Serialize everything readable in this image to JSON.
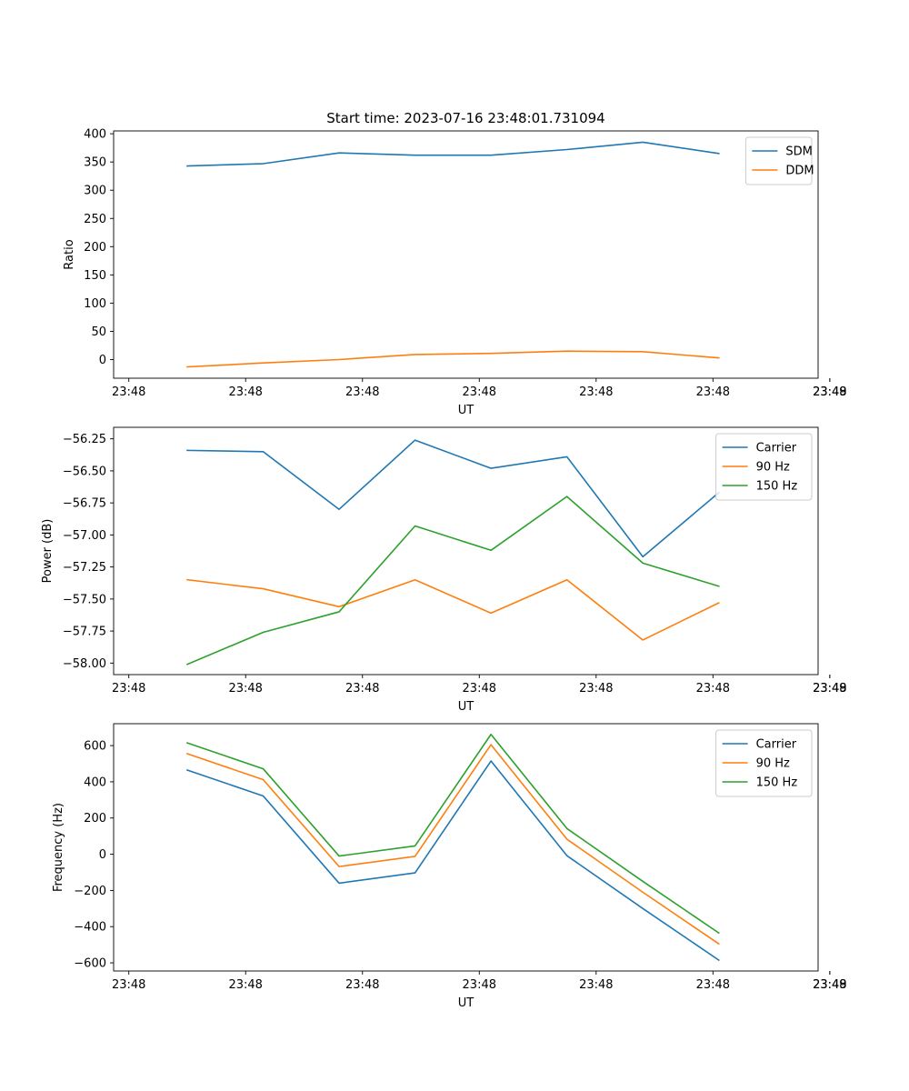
{
  "chart_data": [
    {
      "type": "line",
      "title": "Start time: 2023-07-16 23:48:01.731094",
      "xlabel": "UT",
      "ylabel": "Ratio",
      "xlim": [
        -0.13,
        5.9
      ],
      "ylim": [
        -33,
        405
      ],
      "x": [
        0.5,
        1.15,
        1.8,
        2.45,
        3.1,
        3.75,
        4.4,
        5.05
      ],
      "xticks": [
        0,
        1,
        2,
        3,
        4,
        5,
        6
      ],
      "xtick_labels": [
        "23:48",
        "23:48",
        "23:48",
        "23:48",
        "23:48",
        "23:48",
        "23:48"
      ],
      "xtick_end_label": "23:49",
      "yticks": [
        0,
        50,
        100,
        150,
        200,
        250,
        300,
        350,
        400
      ],
      "ytick_labels": [
        "0",
        "50",
        "100",
        "150",
        "200",
        "250",
        "300",
        "350",
        "400"
      ],
      "legend": "top-right",
      "series": [
        {
          "name": "SDM",
          "color": "#1f77b4",
          "values": [
            343,
            347,
            366,
            362,
            362,
            372,
            385,
            365
          ]
        },
        {
          "name": "DDM",
          "color": "#ff7f0e",
          "values": [
            -13,
            -6,
            0,
            9,
            11,
            15,
            14,
            3
          ]
        }
      ]
    },
    {
      "type": "line",
      "title": "",
      "xlabel": "UT",
      "ylabel": "Power (dB)",
      "xlim": [
        -0.13,
        5.9
      ],
      "ylim": [
        -58.09,
        -56.16
      ],
      "x": [
        0.5,
        1.15,
        1.8,
        2.45,
        3.1,
        3.75,
        4.4,
        5.05
      ],
      "xticks": [
        0,
        1,
        2,
        3,
        4,
        5,
        6
      ],
      "xtick_labels": [
        "23:48",
        "23:48",
        "23:48",
        "23:48",
        "23:48",
        "23:48",
        "23:48"
      ],
      "xtick_end_label": "23:49",
      "yticks": [
        -58.0,
        -57.75,
        -57.5,
        -57.25,
        -57.0,
        -56.75,
        -56.5,
        -56.25
      ],
      "ytick_labels": [
        "−58.00",
        "−57.75",
        "−57.50",
        "−57.25",
        "−57.00",
        "−56.75",
        "−56.50",
        "−56.25"
      ],
      "legend": "top-right",
      "series": [
        {
          "name": "Carrier",
          "color": "#1f77b4",
          "values": [
            -56.34,
            -56.35,
            -56.8,
            -56.26,
            -56.48,
            -56.39,
            -57.17,
            -56.67
          ]
        },
        {
          "name": "90 Hz",
          "color": "#ff7f0e",
          "values": [
            -57.35,
            -57.42,
            -57.56,
            -57.35,
            -57.61,
            -57.35,
            -57.82,
            -57.53
          ]
        },
        {
          "name": "150 Hz",
          "color": "#2ca02c",
          "values": [
            -58.01,
            -57.76,
            -57.6,
            -56.93,
            -57.12,
            -56.7,
            -57.22,
            -57.4
          ]
        }
      ]
    },
    {
      "type": "line",
      "title": "",
      "xlabel": "UT",
      "ylabel": "Frequency (Hz)",
      "xlim": [
        -0.13,
        5.9
      ],
      "ylim": [
        -645,
        721
      ],
      "x": [
        0.5,
        1.15,
        1.8,
        2.45,
        3.1,
        3.75,
        4.4,
        5.05
      ],
      "xticks": [
        0,
        1,
        2,
        3,
        4,
        5,
        6
      ],
      "xtick_labels": [
        "23:48",
        "23:48",
        "23:48",
        "23:48",
        "23:48",
        "23:48",
        "23:48"
      ],
      "xtick_end_label": "23:49",
      "yticks": [
        -600,
        -400,
        -200,
        0,
        200,
        400,
        600
      ],
      "ytick_labels": [
        "−600",
        "−400",
        "−200",
        "0",
        "200",
        "400",
        "600"
      ],
      "legend": "top-right",
      "series": [
        {
          "name": "Carrier",
          "color": "#1f77b4",
          "values": [
            465,
            322,
            -160,
            -103,
            515,
            -8,
            -300,
            -585
          ]
        },
        {
          "name": "90 Hz",
          "color": "#ff7f0e",
          "values": [
            555,
            412,
            -68,
            -12,
            605,
            83,
            -210,
            -495
          ]
        },
        {
          "name": "150 Hz",
          "color": "#2ca02c",
          "values": [
            615,
            472,
            -10,
            46,
            662,
            142,
            -150,
            -435
          ]
        }
      ]
    }
  ]
}
